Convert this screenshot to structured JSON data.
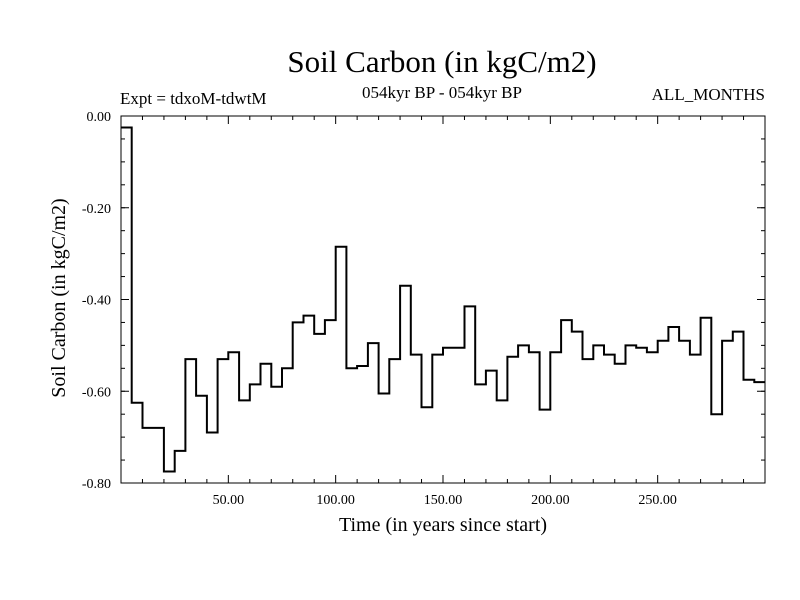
{
  "chart_data": {
    "type": "line",
    "title": "Soil Carbon (in kgC/m2)",
    "annotations": {
      "experiment": "Expt = tdxoM-tdwtM",
      "period": "054kyr BP - 054kyr BP",
      "months": "ALL_MONTHS"
    },
    "xlabel": "Time (in years since start)",
    "ylabel": "Soil Carbon (in kgC/m2)",
    "xlim": [
      0,
      300
    ],
    "ylim": [
      -0.8,
      0.0
    ],
    "x_ticks": [
      50,
      100,
      150,
      200,
      250
    ],
    "x_tick_labels": [
      "50.00",
      "100.00",
      "150.00",
      "200.00",
      "250.00"
    ],
    "y_ticks": [
      0.0,
      -0.2,
      -0.4,
      -0.6,
      -0.8
    ],
    "y_tick_labels": [
      "0.00",
      "-0.20",
      "-0.40",
      "-0.60",
      "-0.80"
    ],
    "grid": false,
    "step": true,
    "x": [
      0,
      5,
      10,
      20,
      25,
      30,
      35,
      40,
      45,
      50,
      55,
      60,
      65,
      70,
      75,
      80,
      85,
      90,
      95,
      100,
      105,
      110,
      115,
      120,
      125,
      130,
      135,
      140,
      145,
      150,
      155,
      160,
      165,
      170,
      175,
      180,
      185,
      190,
      195,
      200,
      205,
      210,
      215,
      220,
      225,
      230,
      235,
      240,
      245,
      250,
      255,
      260,
      265,
      270,
      275,
      280,
      285,
      290,
      295
    ],
    "y": [
      -0.025,
      -0.625,
      -0.68,
      -0.775,
      -0.73,
      -0.53,
      -0.61,
      -0.69,
      -0.53,
      -0.515,
      -0.62,
      -0.585,
      -0.54,
      -0.59,
      -0.55,
      -0.45,
      -0.435,
      -0.475,
      -0.445,
      -0.285,
      -0.55,
      -0.545,
      -0.495,
      -0.605,
      -0.53,
      -0.37,
      -0.52,
      -0.635,
      -0.52,
      -0.505,
      -0.505,
      -0.415,
      -0.585,
      -0.555,
      -0.62,
      -0.525,
      -0.5,
      -0.515,
      -0.64,
      -0.515,
      -0.445,
      -0.47,
      -0.53,
      -0.5,
      -0.52,
      -0.54,
      -0.5,
      -0.505,
      -0.515,
      -0.49,
      -0.46,
      -0.49,
      -0.52,
      -0.44,
      -0.65,
      -0.49,
      -0.47,
      -0.575,
      -0.58
    ]
  }
}
